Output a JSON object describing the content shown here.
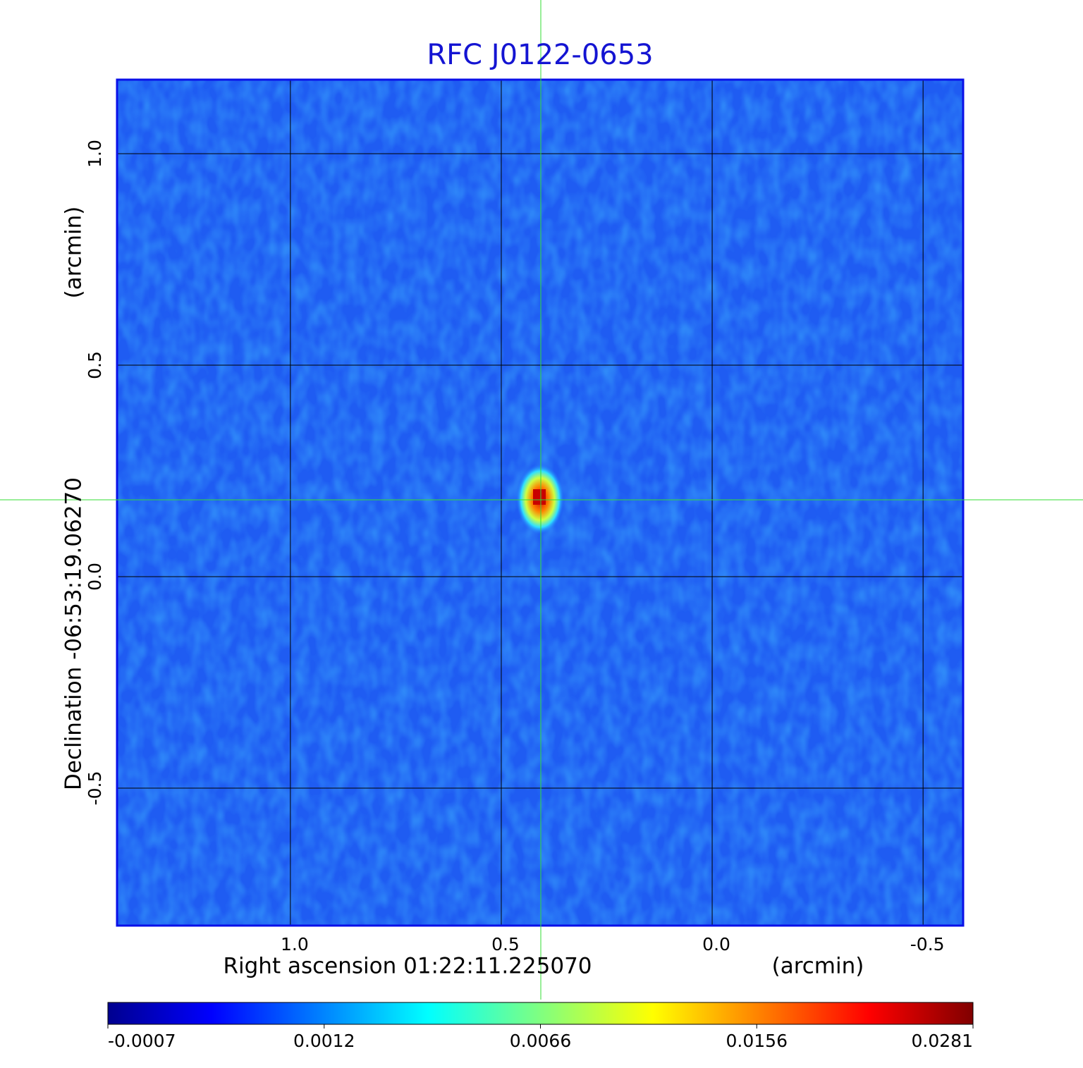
{
  "chart_data": {
    "type": "image",
    "title": "RFC J0122-0653",
    "x_label": "Right ascension  01:22:11.225070",
    "x_unit": "(arcmin)",
    "y_label": "Declination  -06:53:19.06270",
    "y_unit": "(arcmin)",
    "xlim": [
      1.411,
      -0.595
    ],
    "ylim": [
      -0.825,
      1.175
    ],
    "xticks": [
      {
        "value": 1,
        "label": "1.0"
      },
      0.5,
      {
        "value": 0,
        "label": "0.0"
      },
      -0.5
    ],
    "yticks": [
      {
        "value": 1,
        "label": "1.0"
      },
      0.5,
      {
        "value": 0,
        "label": "0.0"
      },
      -0.5
    ],
    "grid": true,
    "colormap": "jet",
    "colorbar_ticks": [
      -0.0007,
      0.0012,
      0.0066,
      0.0156,
      0.0281
    ]
  }
}
